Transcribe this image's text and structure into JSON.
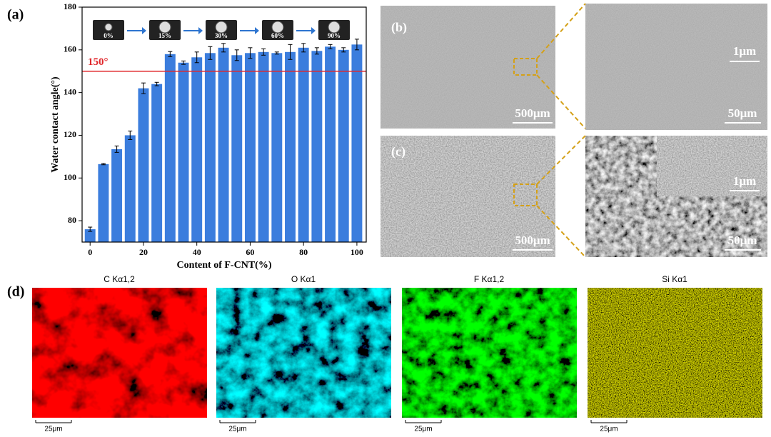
{
  "chart_data": {
    "type": "bar",
    "panel_label": "(a)",
    "xlabel": "Content of F-CNT(%)",
    "ylabel": "Water contact angle(°)",
    "x": [
      0,
      5,
      10,
      15,
      20,
      25,
      30,
      35,
      40,
      45,
      50,
      55,
      60,
      65,
      70,
      75,
      80,
      85,
      90,
      95,
      100
    ],
    "values": [
      76,
      106.5,
      113.5,
      120,
      142,
      144,
      158,
      154,
      156.5,
      158.5,
      161,
      157.5,
      158.5,
      159,
      158.5,
      159,
      161,
      159.5,
      161.5,
      160,
      162.5
    ],
    "errors": [
      1,
      0.3,
      1.5,
      2,
      2.5,
      0.8,
      1.2,
      0.8,
      2.5,
      3,
      2,
      2.5,
      2.5,
      1.5,
      0.5,
      3.5,
      2,
      1.5,
      1,
      1,
      2.5
    ],
    "color": "#3b7ddd",
    "xlim": [
      -3,
      103.5
    ],
    "xticks": [
      0,
      20,
      40,
      60,
      80,
      100
    ],
    "ylim": [
      70,
      180
    ],
    "yticks": [
      80,
      100,
      120,
      140,
      160,
      180
    ],
    "hline": {
      "value": 150,
      "label": "150°",
      "color": "#e0262a"
    },
    "insets": [
      "0%",
      "15%",
      "30%",
      "60%",
      "90%"
    ]
  },
  "panel_b": {
    "label": "(b)",
    "scale_bars": [
      "500μm",
      "50μm",
      "1μm"
    ]
  },
  "panel_c": {
    "label": "(c)",
    "scale_bars": [
      "500μm",
      "50μm",
      "1μm"
    ]
  },
  "panel_d": {
    "label": "(d)",
    "maps": [
      {
        "title": "C Kα1,2",
        "scale": "25μm"
      },
      {
        "title": "O Kα1",
        "scale": "25μm"
      },
      {
        "title": "F Kα1,2",
        "scale": "25μm"
      },
      {
        "title": "Si Kα1",
        "scale": "25μm"
      }
    ]
  }
}
